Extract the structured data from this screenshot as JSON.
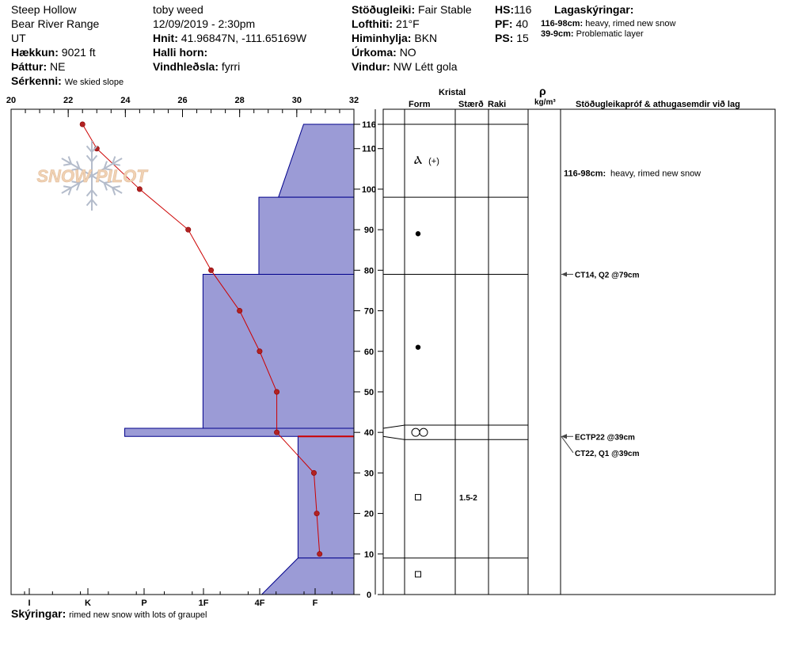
{
  "header": {
    "location": "Steep Hollow",
    "range": "Bear River Range",
    "state": "UT",
    "elevation_label": "Hækkun:",
    "elevation_value": "9021 ft",
    "aspect_label": "Þáttur:",
    "aspect_value": "NE",
    "features_label": "Sérkenni:",
    "features_value": "We skied slope",
    "observer": "toby weed",
    "datetime": "12/09/2019 - 2:30pm",
    "coords_label": "Hnit:",
    "coords_value": "41.96847N, -111.65169W",
    "slope_label": "Halli horn:",
    "slope_value": "",
    "wind_loading_label": "Vindhleðsla:",
    "wind_loading_value": "fyrri",
    "stability_label": "Stöðugleiki:",
    "stability_value": "Fair Stable",
    "air_temp_label": "Lofthiti:",
    "air_temp_value": "21°F",
    "sky_label": "Himinhylja:",
    "sky_value": "BKN",
    "precip_label": "Úrkoma:",
    "precip_value": "NO",
    "wind_label": "Vindur:",
    "wind_value": "NW Létt gola",
    "hs_label": "HS:",
    "hs_value": "116",
    "pf_label": "PF:",
    "pf_value": "40",
    "ps_label": "PS:",
    "ps_value": "15",
    "legend_title": "Lagaskýringar:",
    "legend_items": [
      {
        "range": "116-98cm:",
        "text": "heavy, rimed new snow"
      },
      {
        "range": "39-9cm:",
        "text": "Problematic layer"
      }
    ]
  },
  "logo_text": "SNOW PILOT",
  "notes_label": "Skýringar:",
  "notes_value": "rimed new snow with lots of graupel",
  "table_headers": {
    "crystal": "Kristal",
    "form": "Form",
    "size": "Stærð",
    "moisture": "Raki",
    "rho": "ρ",
    "density_unit": "kg/m³",
    "comments": "Stöðugleikapróf & athugasemdir við lag"
  },
  "colors": {
    "hardness_fill": "#9b9bd6",
    "hardness_edge": "#00008b",
    "temp_line": "#cc0000",
    "temp_point": "#b22222",
    "logo": "#f0d2b4",
    "snowflake": "#b4bccb"
  },
  "chart_data": {
    "type": "line",
    "temperature_axis": {
      "ticks": [
        "20",
        "22",
        "24",
        "26",
        "28",
        "30",
        "32"
      ],
      "range": [
        20,
        32
      ],
      "unit_note": "°F"
    },
    "depth_axis": {
      "ticks": [
        "0",
        "10",
        "20",
        "30",
        "40",
        "50",
        "60",
        "70",
        "80",
        "90",
        "100",
        "110",
        "116"
      ],
      "range": [
        0,
        116
      ]
    },
    "hardness_axis": {
      "ticks": [
        "I",
        "K",
        "P",
        "1F",
        "4F",
        "F"
      ]
    },
    "temperature_profile": {
      "depth": [
        116,
        110,
        100,
        90,
        80,
        70,
        60,
        50,
        40,
        30,
        20,
        10
      ],
      "temp": [
        22.5,
        23.0,
        24.5,
        26.2,
        27.0,
        28.0,
        28.7,
        29.3,
        29.3,
        30.6,
        30.7,
        30.8
      ]
    },
    "layers": [
      {
        "top": 116,
        "bottom": 98,
        "hardness_top": 1.8,
        "hardness_bottom": 2.7,
        "form": "graupel-symbol",
        "form_note": "(+)",
        "size": "",
        "comment": "116-98cm: heavy, rimed new snow"
      },
      {
        "top": 98,
        "bottom": 79,
        "hardness_top": 3.4,
        "hardness_bottom": 3.4,
        "form": "rounded-symbol",
        "form_note": "",
        "size": "",
        "comment": "CT14, Q2 @79cm"
      },
      {
        "top": 79,
        "bottom": 41,
        "hardness_top": 5.4,
        "hardness_bottom": 5.4,
        "form": "rounded-symbol",
        "form_note": "",
        "size": "",
        "comment": ""
      },
      {
        "top": 41,
        "bottom": 39,
        "hardness_top": 8.2,
        "hardness_bottom": 8.2,
        "form": "surface-hoar-symbol",
        "form_note": "",
        "size": "",
        "comment": "ECTP22 @39cm"
      },
      {
        "top": 39,
        "bottom": 9,
        "hardness_top": 2.0,
        "hardness_bottom": 2.0,
        "form": "facets-symbol",
        "form_note": "",
        "size": "1.5-2",
        "comment": "CT22, Q1 @39cm"
      },
      {
        "top": 9,
        "bottom": 0,
        "hardness_top": 2.0,
        "hardness_bottom": 3.3,
        "form": "facets-symbol",
        "form_note": "",
        "size": "",
        "comment": ""
      }
    ]
  }
}
